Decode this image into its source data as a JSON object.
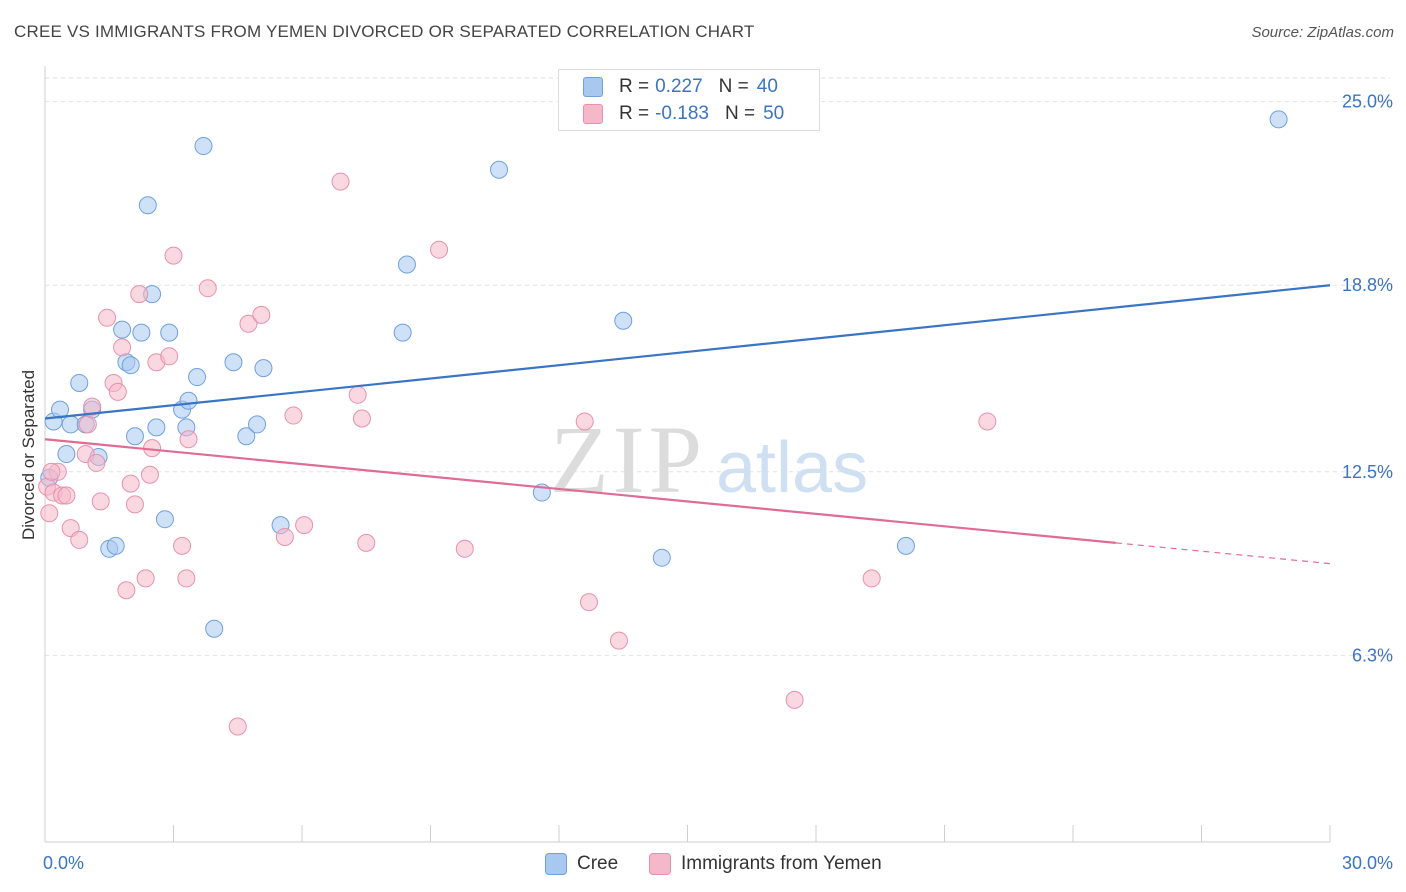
{
  "header": {
    "title": "CREE VS IMMIGRANTS FROM YEMEN DIVORCED OR SEPARATED CORRELATION CHART",
    "source": "Source: ZipAtlas.com"
  },
  "watermark": {
    "zip": "ZIP",
    "atlas": "atlas"
  },
  "legend": {
    "rows": [
      {
        "r_label": "R =",
        "r_value": "0.227",
        "n_label": "N =",
        "n_value": "40",
        "color": "#a8c8f0"
      },
      {
        "r_label": "R =",
        "r_value": "-0.183",
        "n_label": "N =",
        "n_value": "50",
        "color": "#f5b8cb"
      }
    ]
  },
  "bottom_legend": {
    "items": [
      {
        "label": "Cree",
        "color": "#a8c8f0"
      },
      {
        "label": "Immigrants from Yemen",
        "color": "#f5b8cb"
      }
    ]
  },
  "chart_data": {
    "type": "scatter",
    "title": "CREE VS IMMIGRANTS FROM YEMEN DIVORCED OR SEPARATED CORRELATION CHART",
    "xlabel": "",
    "ylabel": "Divorced or Separated",
    "xlim": [
      0,
      30
    ],
    "ylim": [
      0,
      26
    ],
    "x_tick_labels": [
      "0.0%",
      "30.0%"
    ],
    "y_ticks": [
      6.3,
      12.5,
      18.8,
      25.0
    ],
    "y_tick_labels": [
      "6.3%",
      "12.5%",
      "18.8%",
      "25.0%"
    ],
    "grid": true,
    "legend_position": "top-center",
    "series": [
      {
        "name": "Cree",
        "color": "#a8c8f0",
        "stroke": "#6fa0de",
        "line_color": "#3a74c5",
        "trend": {
          "x": [
            0.0,
            30.0
          ],
          "y": [
            14.3,
            18.8
          ]
        },
        "points": [
          [
            0.1,
            12.3
          ],
          [
            0.2,
            14.2
          ],
          [
            0.35,
            14.6
          ],
          [
            0.5,
            13.1
          ],
          [
            0.6,
            14.1
          ],
          [
            0.8,
            15.5
          ],
          [
            0.95,
            14.1
          ],
          [
            1.1,
            14.6
          ],
          [
            1.25,
            13.0
          ],
          [
            1.5,
            9.9
          ],
          [
            1.65,
            10.0
          ],
          [
            1.8,
            17.3
          ],
          [
            1.9,
            16.2
          ],
          [
            2.0,
            16.1
          ],
          [
            2.1,
            13.7
          ],
          [
            2.25,
            17.2
          ],
          [
            2.4,
            21.5
          ],
          [
            2.5,
            18.5
          ],
          [
            2.6,
            14.0
          ],
          [
            2.8,
            10.9
          ],
          [
            2.9,
            17.2
          ],
          [
            3.2,
            14.6
          ],
          [
            3.3,
            14.0
          ],
          [
            3.35,
            14.9
          ],
          [
            3.55,
            15.7
          ],
          [
            3.7,
            23.5
          ],
          [
            3.95,
            7.2
          ],
          [
            4.4,
            16.2
          ],
          [
            4.7,
            13.7
          ],
          [
            4.95,
            14.1
          ],
          [
            5.1,
            16.0
          ],
          [
            5.5,
            10.7
          ],
          [
            8.35,
            17.2
          ],
          [
            8.45,
            19.5
          ],
          [
            10.6,
            22.7
          ],
          [
            11.6,
            11.8
          ],
          [
            13.5,
            17.6
          ],
          [
            14.4,
            9.6
          ],
          [
            20.1,
            10.0
          ],
          [
            28.8,
            24.4
          ]
        ]
      },
      {
        "name": "Immigrants from Yemen",
        "color": "#f5b8cb",
        "stroke": "#e891ad",
        "line_color": "#e06c94",
        "trend": {
          "x": [
            0.0,
            25.0
          ],
          "y": [
            13.6,
            10.1
          ]
        },
        "trend_dashed": {
          "x": [
            25.0,
            30.0
          ],
          "y": [
            10.1,
            9.4
          ]
        },
        "points": [
          [
            0.05,
            12.0
          ],
          [
            0.1,
            11.1
          ],
          [
            0.2,
            11.8
          ],
          [
            0.3,
            12.5
          ],
          [
            0.4,
            11.7
          ],
          [
            0.5,
            11.7
          ],
          [
            0.6,
            10.6
          ],
          [
            0.8,
            10.2
          ],
          [
            0.95,
            13.1
          ],
          [
            1.0,
            14.1
          ],
          [
            1.1,
            14.7
          ],
          [
            1.2,
            12.8
          ],
          [
            1.3,
            11.5
          ],
          [
            1.45,
            17.7
          ],
          [
            1.6,
            15.5
          ],
          [
            1.7,
            15.2
          ],
          [
            1.8,
            16.7
          ],
          [
            1.9,
            8.5
          ],
          [
            2.0,
            12.1
          ],
          [
            2.1,
            11.4
          ],
          [
            2.2,
            18.5
          ],
          [
            2.35,
            8.9
          ],
          [
            2.45,
            12.4
          ],
          [
            2.5,
            13.3
          ],
          [
            2.6,
            16.2
          ],
          [
            2.9,
            16.4
          ],
          [
            3.0,
            19.8
          ],
          [
            3.2,
            10.0
          ],
          [
            3.3,
            8.9
          ],
          [
            3.35,
            13.6
          ],
          [
            3.8,
            18.7
          ],
          [
            4.5,
            3.9
          ],
          [
            4.75,
            17.5
          ],
          [
            5.05,
            17.8
          ],
          [
            5.6,
            10.3
          ],
          [
            5.8,
            14.4
          ],
          [
            6.05,
            10.7
          ],
          [
            6.9,
            22.3
          ],
          [
            7.3,
            15.1
          ],
          [
            7.4,
            14.3
          ],
          [
            7.5,
            10.1
          ],
          [
            9.2,
            20.0
          ],
          [
            9.8,
            9.9
          ],
          [
            12.6,
            14.2
          ],
          [
            12.7,
            8.1
          ],
          [
            13.4,
            6.8
          ],
          [
            17.5,
            4.8
          ],
          [
            19.3,
            8.9
          ],
          [
            22.0,
            14.2
          ],
          [
            0.15,
            12.5
          ]
        ]
      }
    ]
  }
}
